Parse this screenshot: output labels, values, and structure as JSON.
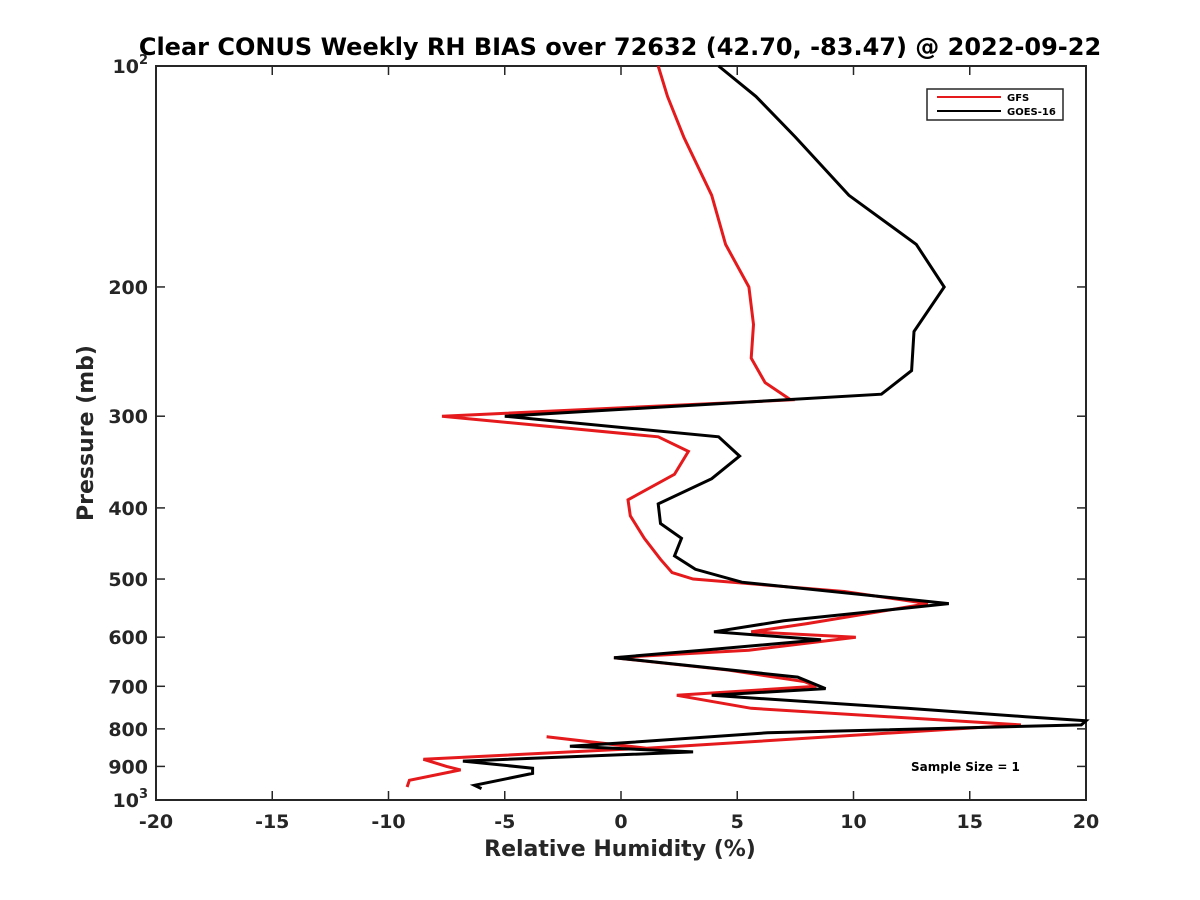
{
  "chart_data": {
    "type": "line",
    "title": "Clear CONUS Weekly RH BIAS over 72632 (42.70, -83.47) @ 2022-09-22",
    "xlabel": "Relative Humidity (%)",
    "ylabel": "Pressure (mb)",
    "xlim": [
      -20,
      20
    ],
    "ylim": [
      1000,
      100
    ],
    "yscale": "log",
    "grid": false,
    "legend_position": "top-right",
    "x_ticks": [
      -20,
      -15,
      -10,
      -5,
      0,
      5,
      10,
      15,
      20
    ],
    "x_tick_labels": [
      "-20",
      "-15",
      "-10",
      "-5",
      "0",
      "5",
      "10",
      "15",
      "20"
    ],
    "y_ticks": [
      100,
      200,
      300,
      400,
      500,
      600,
      700,
      800,
      900,
      1000
    ],
    "y_tick_labels": [
      {
        "base": "10",
        "exp": "2"
      },
      {
        "base": "200",
        "exp": ""
      },
      {
        "base": "300",
        "exp": ""
      },
      {
        "base": "400",
        "exp": ""
      },
      {
        "base": "500",
        "exp": ""
      },
      {
        "base": "600",
        "exp": ""
      },
      {
        "base": "700",
        "exp": ""
      },
      {
        "base": "800",
        "exp": ""
      },
      {
        "base": "900",
        "exp": ""
      },
      {
        "base": "10",
        "exp": "3"
      }
    ],
    "annotation": "Sample Size = 1",
    "series": [
      {
        "name": "GFS",
        "color": "#e41a1c",
        "points": [
          [
            1.6,
            100
          ],
          [
            2.0,
            110
          ],
          [
            2.7,
            125
          ],
          [
            3.9,
            150
          ],
          [
            4.5,
            175
          ],
          [
            5.5,
            200
          ],
          [
            5.7,
            225
          ],
          [
            5.6,
            250
          ],
          [
            6.2,
            270
          ],
          [
            7.3,
            285
          ],
          [
            -7.7,
            300
          ],
          [
            1.6,
            320
          ],
          [
            2.9,
            335
          ],
          [
            2.3,
            360
          ],
          [
            0.3,
            390
          ],
          [
            0.4,
            410
          ],
          [
            1.0,
            440
          ],
          [
            1.7,
            470
          ],
          [
            2.2,
            490
          ],
          [
            3.1,
            500
          ],
          [
            9.6,
            520
          ],
          [
            13.2,
            540
          ],
          [
            8.0,
            575
          ],
          [
            5.6,
            590
          ],
          [
            10.1,
            600
          ],
          [
            5.5,
            625
          ],
          [
            -0.3,
            640
          ],
          [
            4.6,
            665
          ],
          [
            7.9,
            690
          ],
          [
            8.4,
            700
          ],
          [
            2.4,
            720
          ],
          [
            5.6,
            750
          ],
          [
            17.2,
            790
          ],
          [
            1.1,
            850
          ],
          [
            -3.2,
            820
          ],
          [
            1.0,
            850
          ],
          [
            -8.5,
            880
          ],
          [
            -7.5,
            900
          ],
          [
            -6.9,
            910
          ],
          [
            -9.1,
            940
          ],
          [
            -9.2,
            960
          ]
        ]
      },
      {
        "name": "GOES-16",
        "color": "#000000",
        "points": [
          [
            4.2,
            100
          ],
          [
            5.8,
            110
          ],
          [
            7.5,
            125
          ],
          [
            9.8,
            150
          ],
          [
            12.7,
            175
          ],
          [
            13.9,
            200
          ],
          [
            12.6,
            230
          ],
          [
            12.5,
            260
          ],
          [
            11.2,
            280
          ],
          [
            -5.0,
            300
          ],
          [
            4.2,
            320
          ],
          [
            5.1,
            340
          ],
          [
            3.9,
            365
          ],
          [
            1.6,
            395
          ],
          [
            1.7,
            420
          ],
          [
            2.6,
            440
          ],
          [
            2.3,
            465
          ],
          [
            3.2,
            485
          ],
          [
            5.2,
            505
          ],
          [
            14.1,
            540
          ],
          [
            7.0,
            570
          ],
          [
            4.0,
            590
          ],
          [
            8.6,
            605
          ],
          [
            3.5,
            625
          ],
          [
            -0.3,
            640
          ],
          [
            7.6,
            680
          ],
          [
            8.8,
            705
          ],
          [
            3.9,
            720
          ],
          [
            12.3,
            750
          ],
          [
            17.4,
            770
          ],
          [
            20.0,
            780
          ],
          [
            19.8,
            790
          ],
          [
            6.3,
            810
          ],
          [
            0.3,
            835
          ],
          [
            -2.2,
            845
          ],
          [
            3.1,
            860
          ],
          [
            -6.8,
            885
          ],
          [
            -3.8,
            905
          ],
          [
            -3.8,
            920
          ],
          [
            -6.3,
            955
          ],
          [
            -6.0,
            965
          ]
        ]
      }
    ]
  }
}
